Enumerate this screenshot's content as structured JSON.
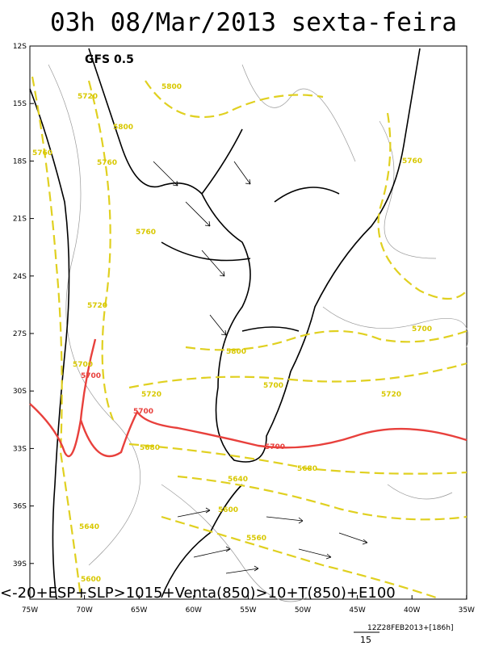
{
  "header": {
    "title": "03h 08/Mar/2013 sexta-feira",
    "model": "GFS 0.5"
  },
  "map": {
    "lat_labels": [
      "12S",
      "15S",
      "18S",
      "21S",
      "24S",
      "27S",
      "30S",
      "33S",
      "36S",
      "39S"
    ],
    "lon_labels": [
      "75W",
      "70W",
      "65W",
      "60W",
      "55W",
      "50W",
      "45W",
      "40W",
      "35W"
    ],
    "contour_labels": [
      "5800",
      "5720",
      "5800",
      "5760",
      "5760",
      "5760",
      "5720",
      "5800",
      "5700",
      "5700",
      "5700",
      "5720",
      "5700",
      "5680",
      "5700",
      "5720",
      "5680",
      "5640",
      "5600",
      "5560",
      "5640",
      "5600",
      "5760",
      "5700"
    ]
  },
  "footer": {
    "caption": "<-20+ESP+SLP>1015+Venta(850)>10+T(850)+E100",
    "run": "12Z28FEB2013+[186h]",
    "scale": "15"
  }
}
